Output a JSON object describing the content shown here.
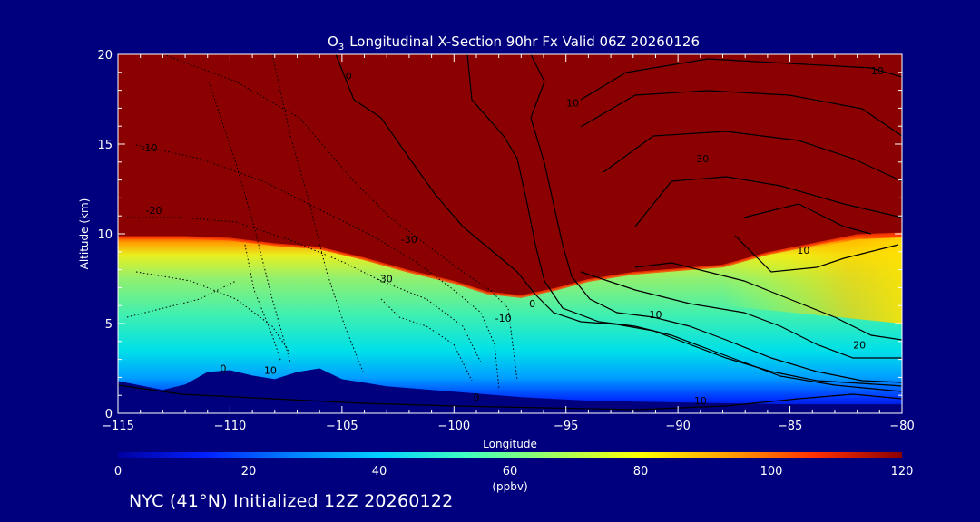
{
  "chart_data": {
    "type": "heatmap",
    "title": "Longitudinal X-Section 90hr  Fx Valid 06Z 20260126",
    "title_species": "O",
    "title_species_subscript": "3",
    "xlabel": "Longitude",
    "ylabel": "Altitude (km)",
    "xlim": [
      -115,
      -80
    ],
    "ylim": [
      0,
      20
    ],
    "x_ticks": [
      -115,
      -110,
      -105,
      -100,
      -95,
      -90,
      -85,
      -80
    ],
    "x_tick_labels": [
      "−115",
      "−110",
      "−105",
      "−100",
      "−95",
      "−90",
      "−85",
      "−80"
    ],
    "y_ticks": [
      0,
      5,
      10,
      15,
      20
    ],
    "y_tick_labels": [
      "0",
      "5",
      "10",
      "15",
      "20"
    ],
    "colorbar": {
      "min": 0,
      "max": 120,
      "unit": "(ppbv)",
      "ticks": [
        0,
        20,
        40,
        60,
        80,
        100,
        120
      ],
      "tick_labels": [
        "0",
        "20",
        "40",
        "60",
        "80",
        "100",
        "120"
      ],
      "palette": [
        "#0000a0",
        "#0020ff",
        "#0080ff",
        "#00d0ff",
        "#40ffc0",
        "#a0ff60",
        "#ffff00",
        "#ffa000",
        "#ff3000",
        "#8b0000"
      ]
    },
    "tropopause_boundary": [
      [
        -115,
        9.8
      ],
      [
        -112,
        9.8
      ],
      [
        -110,
        9.7
      ],
      [
        -108,
        9.4
      ],
      [
        -106,
        9.2
      ],
      [
        -104,
        8.6
      ],
      [
        -102,
        7.9
      ],
      [
        -100,
        7.3
      ],
      [
        -98.5,
        6.7
      ],
      [
        -97,
        6.5
      ],
      [
        -95.5,
        6.9
      ],
      [
        -94,
        7.4
      ],
      [
        -92,
        7.8
      ],
      [
        -90,
        8.0
      ],
      [
        -88,
        8.2
      ],
      [
        -86,
        8.9
      ],
      [
        -84,
        9.4
      ],
      [
        -82,
        9.9
      ],
      [
        -80,
        10.0
      ]
    ],
    "terrain": [
      [
        -115,
        1.8
      ],
      [
        -113,
        1.3
      ],
      [
        -112,
        1.6
      ],
      [
        -111,
        2.3
      ],
      [
        -110,
        2.4
      ],
      [
        -109,
        2.1
      ],
      [
        -108,
        1.9
      ],
      [
        -107,
        2.3
      ],
      [
        -106,
        2.5
      ],
      [
        -105,
        1.9
      ],
      [
        -103,
        1.5
      ],
      [
        -100,
        1.2
      ],
      [
        -97,
        0.9
      ],
      [
        -94,
        0.7
      ],
      [
        -90,
        0.6
      ],
      [
        -85,
        0.5
      ],
      [
        -80,
        0.5
      ]
    ],
    "contour_labels": [
      {
        "text": "-10",
        "lon": -113.6,
        "alt": 14.6
      },
      {
        "text": "-20",
        "lon": -113.4,
        "alt": 11.1
      },
      {
        "text": "-30",
        "lon": -102,
        "alt": 9.5
      },
      {
        "text": "-30",
        "lon": -103.1,
        "alt": 7.3
      },
      {
        "text": "0",
        "lon": -110.3,
        "alt": 2.3
      },
      {
        "text": "10",
        "lon": -108.2,
        "alt": 2.2
      },
      {
        "text": "-10",
        "lon": -97.8,
        "alt": 5.1
      },
      {
        "text": "0",
        "lon": -96.5,
        "alt": 5.9
      },
      {
        "text": "0",
        "lon": -99,
        "alt": 0.7
      },
      {
        "text": "10",
        "lon": -94.7,
        "alt": 17.1
      },
      {
        "text": "10",
        "lon": -91,
        "alt": 5.3
      },
      {
        "text": "10",
        "lon": -89,
        "alt": 0.5
      },
      {
        "text": "10",
        "lon": -81.1,
        "alt": 18.9
      },
      {
        "text": "30",
        "lon": -88.9,
        "alt": 14.0
      },
      {
        "text": "10",
        "lon": -84.4,
        "alt": 8.9
      },
      {
        "text": "20",
        "lon": -81.9,
        "alt": 3.6
      },
      {
        "text": "0",
        "lon": -104.7,
        "alt": 18.6
      }
    ]
  },
  "footer": {
    "text": "NYC (41°N) Initialized 12Z 20260122"
  }
}
